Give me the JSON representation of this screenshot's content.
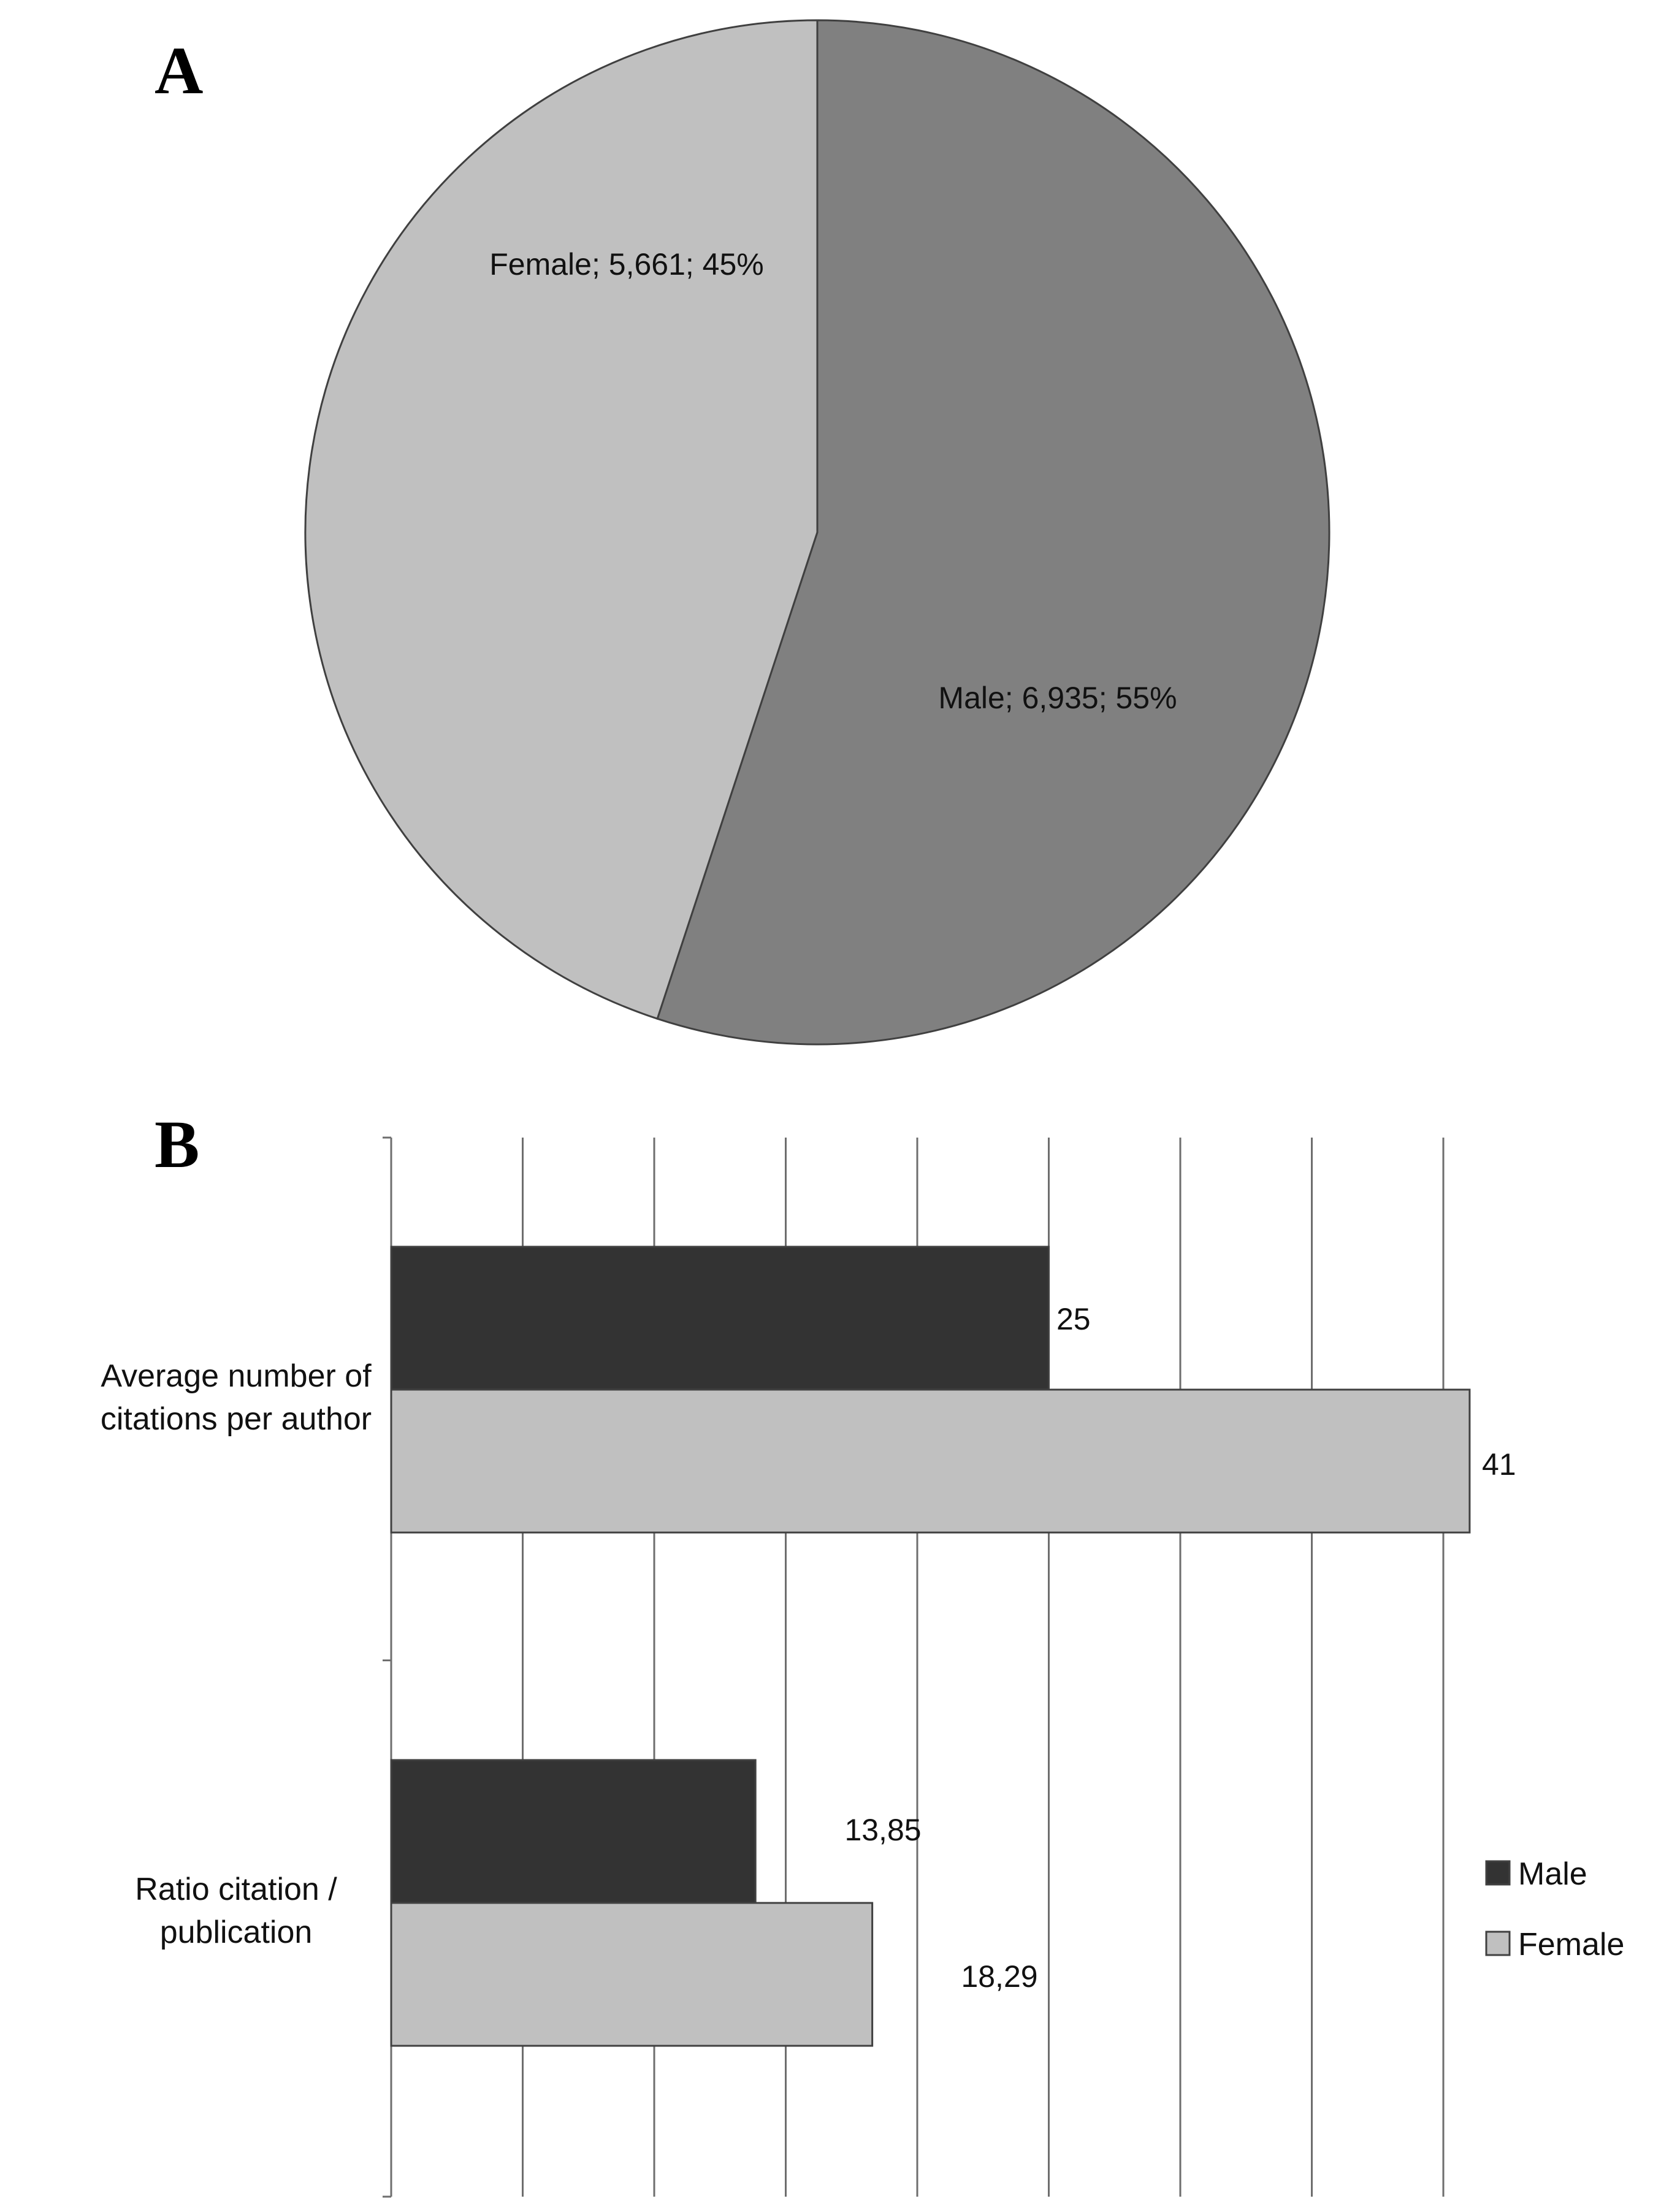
{
  "panels": {
    "a_letter": "A",
    "b_letter": "B"
  },
  "chart_data": [
    {
      "type": "pie",
      "title": "",
      "slices": [
        {
          "name": "Male",
          "value": 6935,
          "label": "Male; 6,935; 55%",
          "color": "#808080"
        },
        {
          "name": "Female",
          "value": 5661,
          "label": "Female; 5,661; 45%",
          "color": "#c0c0c0"
        }
      ],
      "start_angle_deg": 0,
      "direction": "clockwise"
    },
    {
      "type": "bar",
      "orientation": "horizontal",
      "title": "",
      "categories": [
        {
          "lines": [
            "Average number of",
            "citations per author"
          ]
        },
        {
          "lines": [
            "Ratio citation /",
            "publication"
          ]
        }
      ],
      "series": [
        {
          "name": "Male",
          "color": "#333333",
          "values": [
            25,
            13.85
          ],
          "labels": [
            "25",
            "13,85"
          ]
        },
        {
          "name": "Female",
          "color": "#c0c0c0",
          "values": [
            41,
            18.29
          ],
          "labels": [
            "41",
            "18,29"
          ]
        }
      ],
      "xlim": [
        0,
        40
      ],
      "grid_step": 5,
      "grid": true,
      "axis_tick_labels_visible": false,
      "legend": {
        "position": "right"
      }
    }
  ]
}
